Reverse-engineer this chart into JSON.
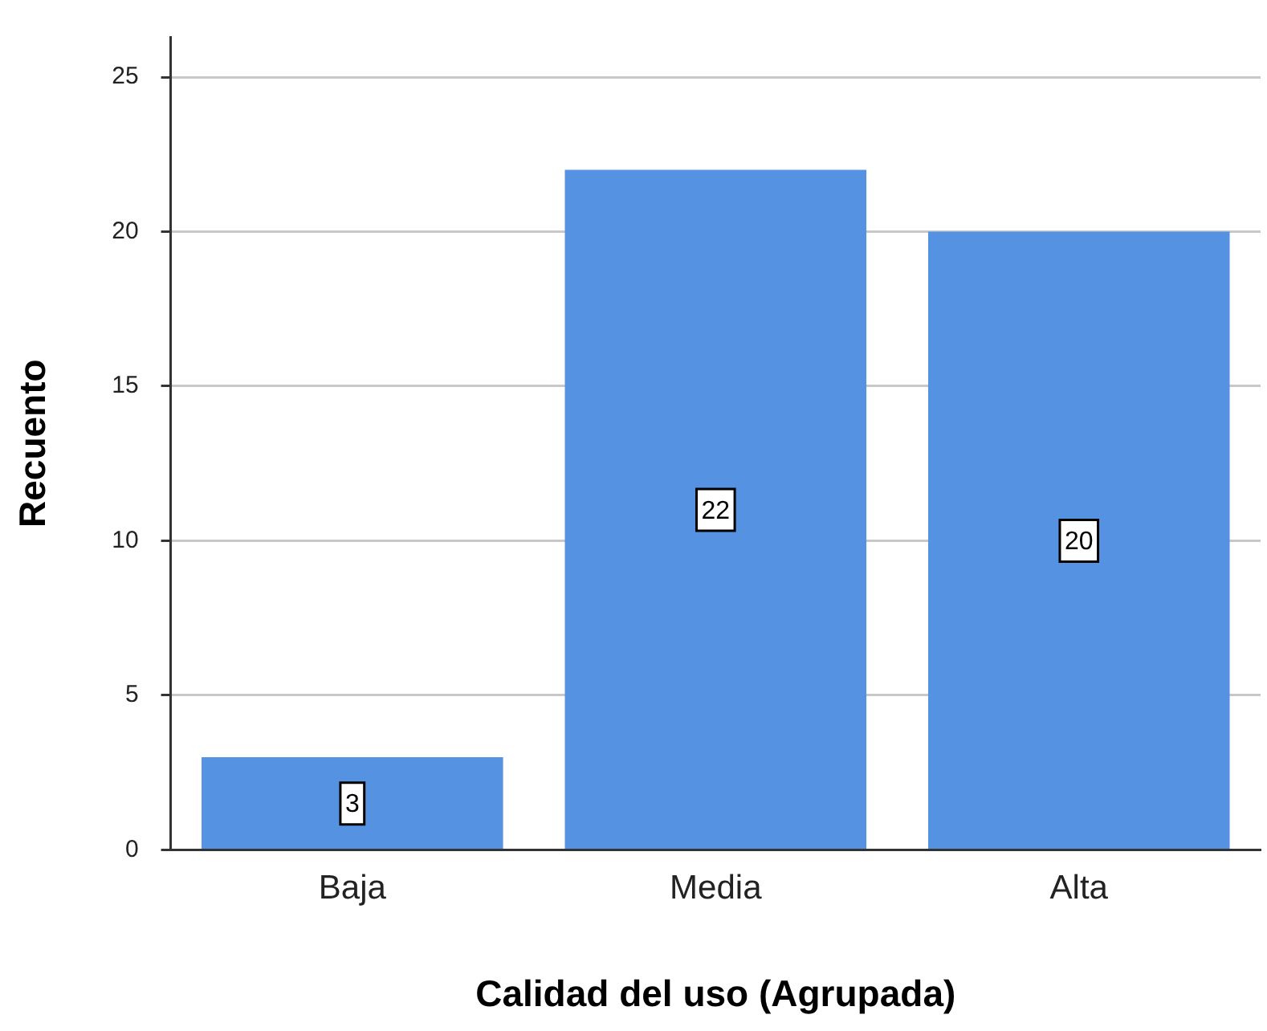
{
  "chart_data": {
    "type": "bar",
    "xlabel": "Calidad del uso (Agrupada)",
    "ylabel": "Recuento",
    "categories": [
      "Baja",
      "Media",
      "Alta"
    ],
    "values": [
      3,
      22,
      20
    ],
    "color": "#5593e2",
    "ylim": [
      0,
      26.3
    ],
    "yticks": [
      0,
      5,
      10,
      15,
      20,
      25
    ],
    "grid": "y",
    "data_labels": true
  }
}
